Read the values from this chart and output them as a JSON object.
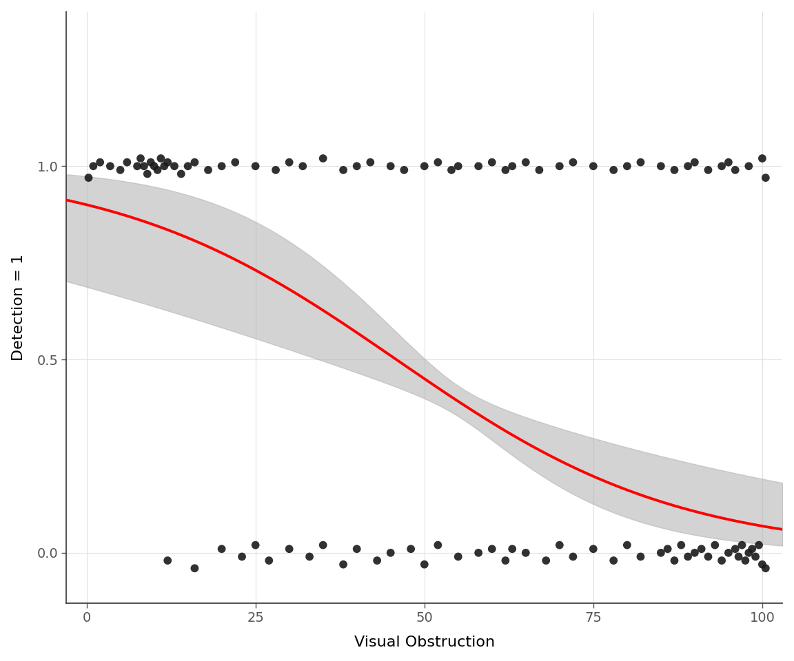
{
  "xlabel": "Visual Obstruction",
  "ylabel": "Detection = 1",
  "xlim": [
    -3,
    103
  ],
  "ylim": [
    -0.13,
    1.4
  ],
  "yticks": [
    0.0,
    0.5,
    1.0
  ],
  "xticks": [
    0,
    25,
    50,
    75,
    100
  ],
  "bg_color": "#ffffff",
  "grid_color": "#e0e0e0",
  "curve_color": "#ff0000",
  "shade_color": "#b0b0b0",
  "dot_color": "#1a1a1a",
  "dot_alpha": 0.9,
  "dot_size": 72,
  "logit_intercept": 2.2,
  "logit_slope": -0.048,
  "se_intercept": 0.72,
  "se_slope": 0.013,
  "detected_x": [
    0.3,
    1.0,
    2.0,
    3.5,
    5.0,
    6.0,
    7.5,
    8.0,
    8.5,
    9.0,
    9.5,
    10.0,
    10.5,
    11.0,
    11.5,
    12.0,
    13.0,
    14.0,
    15.0,
    16.0,
    18.0,
    20.0,
    22.0,
    25.0,
    28.0,
    30.0,
    32.0,
    35.0,
    38.0,
    40.0,
    42.0,
    45.0,
    47.0,
    50.0,
    52.0,
    54.0,
    55.0,
    58.0,
    60.0,
    62.0,
    63.0,
    65.0,
    67.0,
    70.0,
    72.0,
    75.0,
    78.0,
    80.0,
    82.0,
    85.0,
    87.0,
    89.0,
    90.0,
    92.0,
    94.0,
    95.0,
    96.0,
    98.0,
    100.0,
    100.5
  ],
  "detected_y": [
    0.97,
    1.0,
    1.01,
    1.0,
    0.99,
    1.01,
    1.0,
    1.02,
    1.0,
    0.98,
    1.01,
    1.0,
    0.99,
    1.02,
    1.0,
    1.01,
    1.0,
    0.98,
    1.0,
    1.01,
    0.99,
    1.0,
    1.01,
    1.0,
    0.99,
    1.01,
    1.0,
    1.02,
    0.99,
    1.0,
    1.01,
    1.0,
    0.99,
    1.0,
    1.01,
    0.99,
    1.0,
    1.0,
    1.01,
    0.99,
    1.0,
    1.01,
    0.99,
    1.0,
    1.01,
    1.0,
    0.99,
    1.0,
    1.01,
    1.0,
    0.99,
    1.0,
    1.01,
    0.99,
    1.0,
    1.01,
    0.99,
    1.0,
    1.02,
    0.97
  ],
  "not_detected_x": [
    12.0,
    16.0,
    20.0,
    23.0,
    25.0,
    27.0,
    30.0,
    33.0,
    35.0,
    38.0,
    40.0,
    43.0,
    45.0,
    48.0,
    50.0,
    52.0,
    55.0,
    58.0,
    60.0,
    62.0,
    63.0,
    65.0,
    68.0,
    70.0,
    72.0,
    75.0,
    78.0,
    80.0,
    82.0,
    85.0,
    86.0,
    87.0,
    88.0,
    89.0,
    90.0,
    91.0,
    92.0,
    93.0,
    94.0,
    95.0,
    96.0,
    96.5,
    97.0,
    97.5,
    98.0,
    98.5,
    99.0,
    99.5,
    100.0,
    100.5
  ],
  "not_detected_y": [
    -0.02,
    -0.04,
    0.01,
    -0.01,
    0.02,
    -0.02,
    0.01,
    -0.01,
    0.02,
    -0.03,
    0.01,
    -0.02,
    0.0,
    0.01,
    -0.03,
    0.02,
    -0.01,
    0.0,
    0.01,
    -0.02,
    0.01,
    0.0,
    -0.02,
    0.02,
    -0.01,
    0.01,
    -0.02,
    0.02,
    -0.01,
    0.0,
    0.01,
    -0.02,
    0.02,
    -0.01,
    0.0,
    0.01,
    -0.01,
    0.02,
    -0.02,
    0.0,
    0.01,
    -0.01,
    0.02,
    -0.02,
    0.0,
    0.01,
    -0.01,
    0.02,
    -0.03,
    -0.04
  ]
}
